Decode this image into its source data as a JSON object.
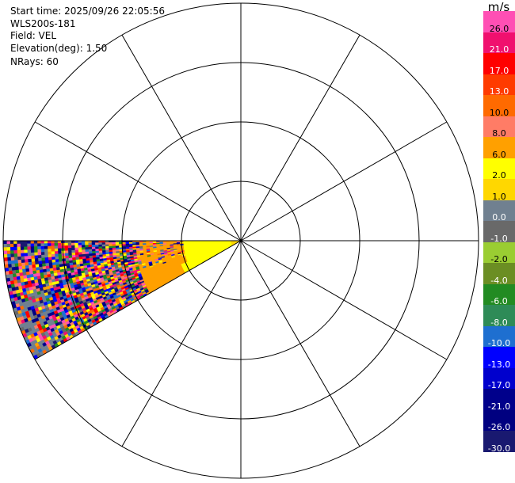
{
  "header": {
    "start_time": "Start time: 2025/09/26 22:05:56",
    "instrument": "WLS200s-181",
    "field": "Field: VEL",
    "elevation": "Elevation(deg): 1.50",
    "nrays": "NRays: 60"
  },
  "legend": {
    "unit": "m/s",
    "bands": [
      {
        "label": "26.0",
        "color": "#ff4fb4"
      },
      {
        "label": "21.0",
        "color": "#f0106e"
      },
      {
        "label": "17.0",
        "color": "#ff0000"
      },
      {
        "label": "13.0",
        "color": "#ff3b00"
      },
      {
        "label": "10.0",
        "color": "#ff6a00"
      },
      {
        "label": "8.0",
        "color": "#ff7c66"
      },
      {
        "label": "6.0",
        "color": "#ffa000"
      },
      {
        "label": "2.0",
        "color": "#ffff00"
      },
      {
        "label": "1.0",
        "color": "#ffd700"
      },
      {
        "label": "0.0",
        "color": "#708090"
      },
      {
        "label": "-1.0",
        "color": "#696969"
      },
      {
        "label": "-2.0",
        "color": "#9acd32"
      },
      {
        "label": "-4.0",
        "color": "#6b8e23"
      },
      {
        "label": "-6.0",
        "color": "#228b22"
      },
      {
        "label": "-8.0",
        "color": "#2e8b57"
      },
      {
        "label": "-10.0",
        "color": "#1e6fd0"
      },
      {
        "label": "-13.0",
        "color": "#0000ff"
      },
      {
        "label": "-17.0",
        "color": "#0000cd"
      },
      {
        "label": "-21.0",
        "color": "#00008b"
      },
      {
        "label": "-26.0",
        "color": "#000080"
      },
      {
        "label": "-30.0",
        "color": "#191970"
      }
    ]
  },
  "chart_data": {
    "type": "ppi",
    "field": "VEL",
    "units": "m/s",
    "elevation_deg": 1.5,
    "nrays": 60,
    "range_rings": 4,
    "spokes_deg": [
      0,
      30,
      60,
      90,
      120,
      150,
      180,
      210,
      240,
      270,
      300,
      330
    ],
    "sector_azimuth_deg": [
      240,
      270
    ],
    "near_band": [
      {
        "from_ring": 0.0,
        "to_ring": 1.0,
        "dominant_value": 1.0
      },
      {
        "from_ring": 1.0,
        "to_ring": 2.0,
        "dominant_value": 6.0
      }
    ],
    "far_band_note": "noisy mixed velocities",
    "grid": true
  }
}
